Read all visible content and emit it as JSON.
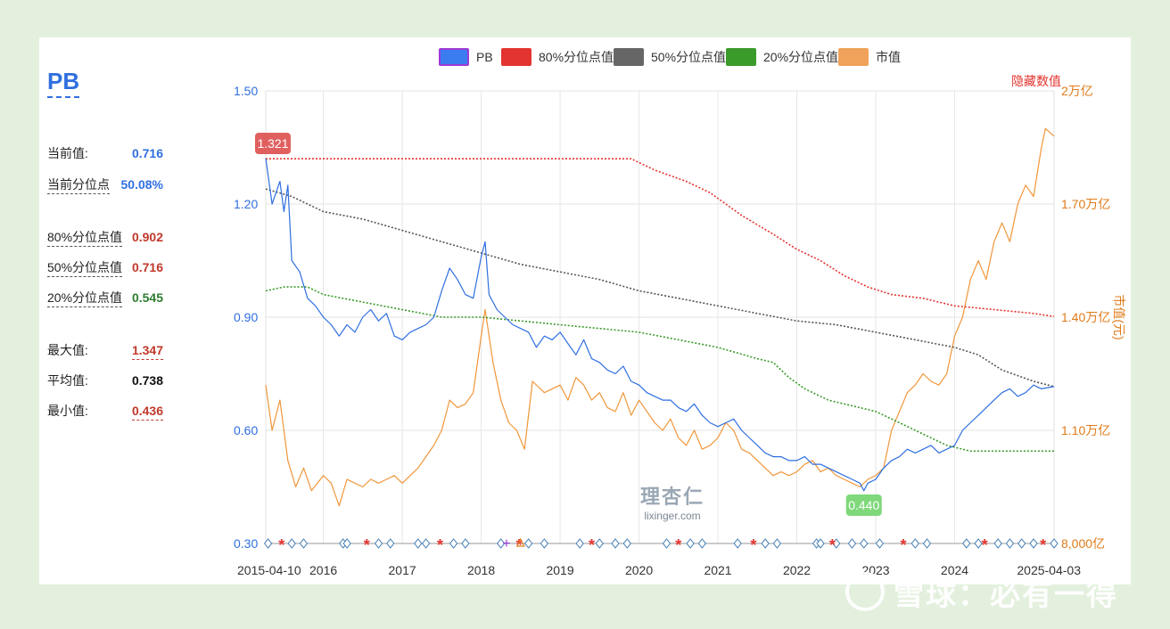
{
  "panel": {
    "title": "PB",
    "current_label": "当前值:",
    "current_value": "0.716",
    "percentile_label": "当前分位点",
    "percentile_value": "50.08%",
    "p80_label": "80%分位点值",
    "p80_value": "0.902",
    "p50_label": "50%分位点值",
    "p50_value": "0.716",
    "p20_label": "20%分位点值",
    "p20_value": "0.545",
    "max_label": "最大值:",
    "max_value": "1.347",
    "avg_label": "平均值:",
    "avg_value": "0.738",
    "min_label": "最小值:",
    "min_value": "0.436"
  },
  "legend": [
    {
      "label": "PB",
      "color": "#3b7cf0",
      "border": "#9b3bd6"
    },
    {
      "label": "80%分位点值",
      "color": "#e3342f",
      "border": "#e3342f"
    },
    {
      "label": "50%分位点值",
      "color": "#666666",
      "border": "#666666"
    },
    {
      "label": "20%分位点值",
      "color": "#3a9a2a",
      "border": "#3a9a2a"
    },
    {
      "label": "市值",
      "color": "#f0a25a",
      "border": "#f0a25a"
    }
  ],
  "hide_values_label": "隐藏数值",
  "watermark": {
    "site": "雪球：必有一得",
    "logo_cn": "理杏仁",
    "logo_url": "lixinger.com"
  },
  "chart_data": {
    "type": "line",
    "x_start": "2015-04-10",
    "x_end": "2025-04-03",
    "x_tick_labels": [
      "2015-04-10",
      "2016",
      "2017",
      "2018",
      "2019",
      "2020",
      "2021",
      "2022",
      "2023",
      "2024",
      "2025-04-03"
    ],
    "x_tick_values": [
      2015.27,
      2016.0,
      2017.0,
      2018.0,
      2019.0,
      2020.0,
      2021.0,
      2022.0,
      2023.0,
      2024.0,
      2025.26
    ],
    "y_left": {
      "ticks": [
        "0.30",
        "0.60",
        "0.90",
        "1.20",
        "1.50"
      ],
      "min": 0.3,
      "max": 1.5
    },
    "y_right": {
      "label": "市值(元)",
      "ticks": [
        "8,000亿",
        "1.10万亿",
        "1.40万亿",
        "1.70万亿",
        "2万亿"
      ],
      "min": 0.8,
      "max": 2.0,
      "unit": "万亿"
    },
    "annotations": [
      {
        "text": "1.321",
        "x": 2015.27,
        "y": 1.321,
        "color": "#e06060"
      },
      {
        "text": "0.440",
        "x": 2022.85,
        "y": 0.44,
        "color": "#7fd87a"
      }
    ],
    "series": [
      {
        "name": "PB",
        "axis": "left",
        "color": "#2f6fe0",
        "x": [
          2015.27,
          2015.35,
          2015.45,
          2015.5,
          2015.55,
          2015.6,
          2015.7,
          2015.8,
          2015.9,
          2016.0,
          2016.1,
          2016.2,
          2016.3,
          2016.4,
          2016.5,
          2016.6,
          2016.7,
          2016.8,
          2016.9,
          2017.0,
          2017.1,
          2017.2,
          2017.3,
          2017.4,
          2017.5,
          2017.6,
          2017.7,
          2017.8,
          2017.9,
          2018.0,
          2018.05,
          2018.1,
          2018.2,
          2018.3,
          2018.4,
          2018.5,
          2018.6,
          2018.7,
          2018.8,
          2018.9,
          2019.0,
          2019.1,
          2019.2,
          2019.3,
          2019.4,
          2019.5,
          2019.6,
          2019.7,
          2019.8,
          2019.9,
          2020.0,
          2020.1,
          2020.2,
          2020.3,
          2020.4,
          2020.5,
          2020.6,
          2020.7,
          2020.8,
          2020.9,
          2021.0,
          2021.1,
          2021.2,
          2021.3,
          2021.4,
          2021.5,
          2021.6,
          2021.7,
          2021.8,
          2021.9,
          2022.0,
          2022.1,
          2022.2,
          2022.3,
          2022.4,
          2022.5,
          2022.6,
          2022.7,
          2022.8,
          2022.85,
          2022.9,
          2023.0,
          2023.1,
          2023.2,
          2023.3,
          2023.4,
          2023.5,
          2023.6,
          2023.7,
          2023.8,
          2023.9,
          2024.0,
          2024.1,
          2024.2,
          2024.3,
          2024.4,
          2024.5,
          2024.6,
          2024.7,
          2024.8,
          2024.9,
          2025.0,
          2025.1,
          2025.26
        ],
        "y": [
          1.321,
          1.2,
          1.26,
          1.18,
          1.25,
          1.05,
          1.02,
          0.95,
          0.93,
          0.9,
          0.88,
          0.85,
          0.88,
          0.86,
          0.9,
          0.92,
          0.89,
          0.91,
          0.85,
          0.84,
          0.86,
          0.87,
          0.88,
          0.9,
          0.97,
          1.03,
          1.0,
          0.96,
          0.95,
          1.06,
          1.1,
          0.96,
          0.92,
          0.9,
          0.88,
          0.87,
          0.86,
          0.82,
          0.85,
          0.84,
          0.86,
          0.83,
          0.8,
          0.84,
          0.79,
          0.78,
          0.76,
          0.75,
          0.77,
          0.73,
          0.72,
          0.7,
          0.69,
          0.68,
          0.68,
          0.66,
          0.65,
          0.67,
          0.64,
          0.62,
          0.61,
          0.62,
          0.63,
          0.6,
          0.58,
          0.56,
          0.54,
          0.53,
          0.53,
          0.52,
          0.52,
          0.53,
          0.51,
          0.51,
          0.5,
          0.49,
          0.48,
          0.47,
          0.46,
          0.44,
          0.46,
          0.47,
          0.5,
          0.52,
          0.53,
          0.55,
          0.54,
          0.55,
          0.56,
          0.54,
          0.55,
          0.56,
          0.6,
          0.62,
          0.64,
          0.66,
          0.68,
          0.7,
          0.71,
          0.69,
          0.7,
          0.72,
          0.71,
          0.716
        ]
      },
      {
        "name": "80%分位点值",
        "axis": "left",
        "color": "#e3342f",
        "dashed": true,
        "x": [
          2015.27,
          2016.0,
          2017.0,
          2018.0,
          2019.0,
          2019.9,
          2020.2,
          2020.6,
          2020.9,
          2021.3,
          2021.7,
          2022.0,
          2022.3,
          2022.6,
          2022.9,
          2023.2,
          2023.6,
          2024.0,
          2024.5,
          2025.0,
          2025.26
        ],
        "y": [
          1.32,
          1.32,
          1.32,
          1.32,
          1.32,
          1.32,
          1.29,
          1.26,
          1.23,
          1.17,
          1.12,
          1.08,
          1.05,
          1.01,
          0.98,
          0.96,
          0.95,
          0.93,
          0.92,
          0.91,
          0.902
        ]
      },
      {
        "name": "50%分位点值",
        "axis": "left",
        "color": "#555555",
        "dashed": true,
        "x": [
          2015.27,
          2015.6,
          2016.0,
          2016.5,
          2017.0,
          2017.5,
          2018.0,
          2018.5,
          2019.0,
          2019.5,
          2020.0,
          2020.5,
          2021.0,
          2021.5,
          2022.0,
          2022.5,
          2023.0,
          2023.5,
          2024.0,
          2024.3,
          2024.6,
          2025.0,
          2025.26
        ],
        "y": [
          1.24,
          1.22,
          1.18,
          1.16,
          1.13,
          1.1,
          1.07,
          1.04,
          1.02,
          1.0,
          0.97,
          0.95,
          0.93,
          0.91,
          0.89,
          0.88,
          0.86,
          0.84,
          0.82,
          0.8,
          0.76,
          0.73,
          0.716
        ]
      },
      {
        "name": "20%分位点值",
        "axis": "left",
        "color": "#3a9a2a",
        "dashed": true,
        "x": [
          2015.27,
          2015.5,
          2015.8,
          2016.0,
          2016.5,
          2017.0,
          2017.5,
          2018.0,
          2018.5,
          2019.0,
          2019.5,
          2020.0,
          2020.5,
          2021.0,
          2021.5,
          2021.7,
          2021.9,
          2022.1,
          2022.4,
          2022.8,
          2023.0,
          2023.3,
          2023.6,
          2023.9,
          2024.2,
          2025.0,
          2025.26
        ],
        "y": [
          0.97,
          0.98,
          0.98,
          0.96,
          0.94,
          0.92,
          0.9,
          0.9,
          0.89,
          0.88,
          0.87,
          0.86,
          0.84,
          0.82,
          0.79,
          0.78,
          0.74,
          0.71,
          0.68,
          0.66,
          0.65,
          0.62,
          0.59,
          0.56,
          0.545,
          0.545,
          0.545
        ]
      },
      {
        "name": "市值",
        "axis": "right",
        "color": "#f0963a",
        "x": [
          2015.27,
          2015.35,
          2015.45,
          2015.55,
          2015.65,
          2015.75,
          2015.85,
          2016.0,
          2016.1,
          2016.2,
          2016.3,
          2016.4,
          2016.5,
          2016.6,
          2016.7,
          2016.8,
          2016.9,
          2017.0,
          2017.1,
          2017.2,
          2017.3,
          2017.4,
          2017.5,
          2017.6,
          2017.7,
          2017.8,
          2017.9,
          2018.0,
          2018.05,
          2018.15,
          2018.25,
          2018.35,
          2018.45,
          2018.55,
          2018.65,
          2018.8,
          2019.0,
          2019.1,
          2019.2,
          2019.3,
          2019.4,
          2019.5,
          2019.6,
          2019.7,
          2019.8,
          2019.9,
          2020.0,
          2020.1,
          2020.2,
          2020.3,
          2020.4,
          2020.5,
          2020.6,
          2020.7,
          2020.8,
          2020.9,
          2021.0,
          2021.1,
          2021.2,
          2021.3,
          2021.4,
          2021.5,
          2021.6,
          2021.7,
          2021.8,
          2021.9,
          2022.0,
          2022.1,
          2022.2,
          2022.3,
          2022.4,
          2022.5,
          2022.6,
          2022.7,
          2022.8,
          2022.9,
          2023.0,
          2023.1,
          2023.2,
          2023.3,
          2023.4,
          2023.5,
          2023.6,
          2023.7,
          2023.8,
          2023.9,
          2024.0,
          2024.1,
          2024.2,
          2024.3,
          2024.4,
          2024.5,
          2024.6,
          2024.7,
          2024.8,
          2024.9,
          2025.0,
          2025.1,
          2025.15,
          2025.26
        ],
        "y": [
          1.22,
          1.1,
          1.18,
          1.02,
          0.95,
          1.0,
          0.94,
          0.98,
          0.96,
          0.9,
          0.97,
          0.96,
          0.95,
          0.97,
          0.96,
          0.97,
          0.98,
          0.96,
          0.98,
          1.0,
          1.03,
          1.06,
          1.1,
          1.18,
          1.16,
          1.17,
          1.2,
          1.35,
          1.42,
          1.28,
          1.18,
          1.12,
          1.1,
          1.05,
          1.23,
          1.2,
          1.22,
          1.18,
          1.24,
          1.22,
          1.18,
          1.2,
          1.16,
          1.15,
          1.2,
          1.14,
          1.18,
          1.15,
          1.12,
          1.1,
          1.13,
          1.08,
          1.06,
          1.1,
          1.05,
          1.06,
          1.08,
          1.12,
          1.1,
          1.05,
          1.04,
          1.02,
          1.0,
          0.98,
          0.99,
          0.98,
          0.99,
          1.01,
          1.02,
          0.99,
          1.0,
          0.98,
          0.97,
          0.96,
          0.95,
          0.97,
          0.98,
          1.0,
          1.1,
          1.15,
          1.2,
          1.22,
          1.25,
          1.23,
          1.22,
          1.25,
          1.35,
          1.4,
          1.5,
          1.55,
          1.5,
          1.6,
          1.65,
          1.6,
          1.7,
          1.75,
          1.72,
          1.85,
          1.9,
          1.88
        ]
      }
    ],
    "markers": {
      "diamond": [
        2015.3,
        2015.6,
        2015.75,
        2016.25,
        2016.3,
        2016.7,
        2016.85,
        2017.2,
        2017.3,
        2017.65,
        2017.8,
        2018.25,
        2018.6,
        2018.8,
        2019.25,
        2019.5,
        2019.7,
        2019.85,
        2020.35,
        2020.65,
        2020.8,
        2021.25,
        2021.6,
        2021.75,
        2022.25,
        2022.3,
        2022.5,
        2022.7,
        2022.85,
        2023.05,
        2023.5,
        2023.65,
        2024.15,
        2024.3,
        2024.55,
        2024.7,
        2024.85,
        2025.0,
        2025.26
      ],
      "star": [
        2015.47,
        2016.55,
        2017.48,
        2018.48,
        2019.4,
        2020.5,
        2021.45,
        2022.45,
        2023.35,
        2024.38,
        2025.12
      ],
      "plus": [
        2018.32
      ],
      "triangle": [
        2018.5
      ]
    },
    "grid": true
  }
}
